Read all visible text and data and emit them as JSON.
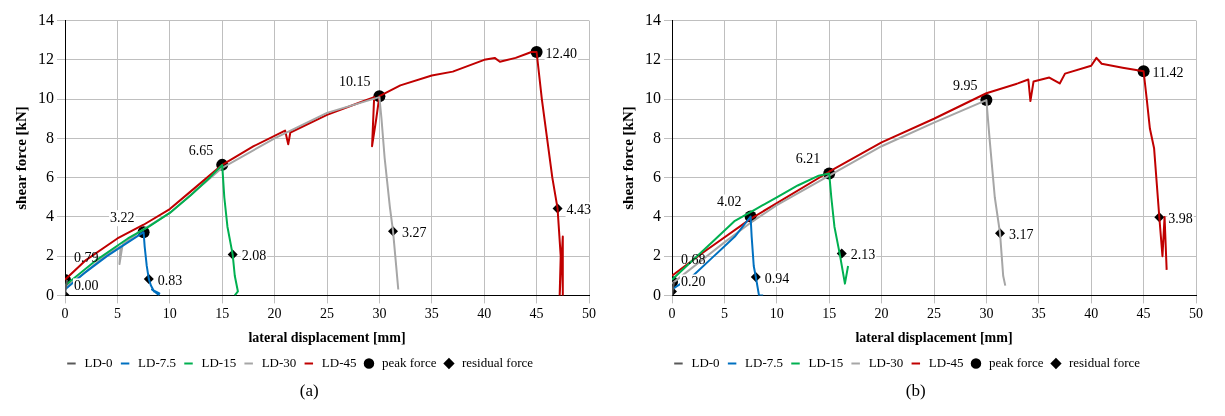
{
  "chart_data": [
    {
      "type": "line",
      "xlabel": "lateral displacement [mm]",
      "ylabel": "shear force [kN]",
      "xlim": [
        0,
        50
      ],
      "xticks": [
        0,
        5,
        10,
        15,
        20,
        25,
        30,
        35,
        40,
        45,
        50
      ],
      "ylim": [
        0,
        14
      ],
      "yticks": [
        0,
        2,
        4,
        6,
        8,
        10,
        12,
        14
      ],
      "grid": true,
      "legend": "bottom",
      "marker": "none",
      "annotations": [
        "(a)"
      ],
      "series": [
        {
          "name": "LD-0",
          "color": "#595959",
          "x": [
            0,
            0.1,
            0.2
          ],
          "values": [
            0,
            0.5,
            0.79
          ]
        },
        {
          "name": "LD-7.5",
          "color": "#0070c0",
          "x": [
            0,
            2,
            4,
            6,
            7.5,
            7.6,
            7.8,
            8.0,
            8.2,
            8.5,
            9,
            8.3,
            9
          ],
          "values": [
            0.3,
            1.2,
            2.0,
            2.7,
            3.22,
            2.5,
            1.5,
            0.83,
            0.5,
            0.2,
            0.1,
            0.3,
            0
          ]
        },
        {
          "name": "LD-15",
          "color": "#00b050",
          "x": [
            0,
            3,
            6,
            8,
            10,
            12,
            14,
            15,
            15.2,
            15.5,
            16,
            16.2,
            16.5,
            16.2
          ],
          "values": [
            0.5,
            1.8,
            2.9,
            3.5,
            4.2,
            5.1,
            6.1,
            6.65,
            5,
            3.5,
            2.08,
            1,
            0.2,
            0
          ]
        },
        {
          "name": "LD-30",
          "color": "#a6a6a6",
          "x": [
            0,
            2,
            4,
            5.3,
            5.2,
            5.5,
            7,
            10,
            15,
            20,
            25,
            30,
            30.2,
            30.5,
            31,
            31.3,
            31.6,
            31.8
          ],
          "values": [
            0.4,
            1.2,
            2.1,
            2.5,
            1.6,
            2.6,
            3.2,
            4.2,
            6.5,
            8.0,
            9.3,
            10.1,
            9,
            7,
            4.5,
            3.27,
            1.5,
            0.3
          ]
        },
        {
          "name": "LD-45",
          "color": "#c00000",
          "x": [
            0,
            2,
            5,
            7.5,
            10,
            12,
            15,
            18,
            21,
            21.3,
            21.5,
            25,
            28,
            29.5,
            29.3,
            29.7,
            30,
            32,
            35,
            37,
            40,
            41,
            41.5,
            43,
            44,
            44.5,
            45,
            45.5,
            46,
            46.5,
            47,
            47.3,
            47.2,
            47.5,
            47.5
          ],
          "values": [
            0.8,
            1.8,
            2.9,
            3.6,
            4.4,
            5.3,
            6.65,
            7.6,
            8.4,
            7.7,
            8.3,
            9.2,
            9.8,
            10.1,
            7.6,
            9,
            10.15,
            10.7,
            11.2,
            11.4,
            12.0,
            12.1,
            11.9,
            12.1,
            12.3,
            12.4,
            12.4,
            10,
            8,
            6,
            4.43,
            2,
            0,
            3,
            0
          ]
        },
        {
          "name": "peak force",
          "type": "scatter",
          "marker": "circle",
          "color": "#000000",
          "x": [
            0,
            7.5,
            15,
            30,
            45
          ],
          "values": [
            0.79,
            3.22,
            6.65,
            10.15,
            12.4
          ],
          "value_labels": [
            "0.79",
            "3.22",
            "6.65",
            "10.15",
            "12.40"
          ]
        },
        {
          "name": "residual force",
          "type": "scatter",
          "marker": "diamond",
          "color": "#000000",
          "x": [
            0,
            8,
            16,
            31.3,
            47
          ],
          "values": [
            0.0,
            0.83,
            2.08,
            3.27,
            4.43
          ],
          "value_labels": [
            "0.00",
            "0.83",
            "2.08",
            "3.27",
            "4.43"
          ]
        }
      ]
    },
    {
      "type": "line",
      "xlabel": "lateral displacement [mm]",
      "ylabel": "shear force [kN]",
      "xlim": [
        0,
        50
      ],
      "xticks": [
        0,
        5,
        10,
        15,
        20,
        25,
        30,
        35,
        40,
        45,
        50
      ],
      "ylim": [
        0,
        14
      ],
      "yticks": [
        0,
        2,
        4,
        6,
        8,
        10,
        12,
        14
      ],
      "grid": true,
      "legend": "bottom",
      "marker": "none",
      "annotations": [
        "(b)"
      ],
      "series": [
        {
          "name": "LD-0",
          "color": "#595959",
          "x": [
            0,
            0.1,
            0.2
          ],
          "values": [
            0,
            0.4,
            0.68
          ]
        },
        {
          "name": "LD-7.5",
          "color": "#0070c0",
          "x": [
            0,
            2,
            4,
            6,
            7.5,
            7.6,
            7.8,
            8,
            8.3,
            8.7
          ],
          "values": [
            0.3,
            1.0,
            2.0,
            3.0,
            4.02,
            3,
            1.5,
            0.94,
            0,
            0
          ]
        },
        {
          "name": "LD-15",
          "color": "#00b050",
          "x": [
            0,
            2,
            4,
            6,
            8,
            10,
            12,
            14,
            15,
            15.2,
            15.5,
            16,
            16.5,
            16.8
          ],
          "values": [
            0.8,
            1.8,
            2.8,
            3.8,
            4.4,
            5.0,
            5.6,
            6.1,
            6.21,
            5,
            3.5,
            2.13,
            0.6,
            1.5
          ]
        },
        {
          "name": "LD-30",
          "color": "#a6a6a6",
          "x": [
            0,
            5,
            7.5,
            10,
            15,
            20,
            25,
            30,
            30.3,
            30.8,
            31.3,
            31.6,
            31.8
          ],
          "values": [
            0.6,
            2.7,
            3.7,
            4.6,
            6.1,
            7.6,
            8.8,
            9.95,
            8,
            5,
            3.17,
            1,
            0.5
          ]
        },
        {
          "name": "LD-45",
          "color": "#c00000",
          "x": [
            0,
            3,
            7.5,
            10,
            15,
            20,
            25,
            30,
            33,
            34,
            34.2,
            34.5,
            36,
            37,
            37.5,
            40,
            40.5,
            41,
            43,
            45,
            45.3,
            45.6,
            46,
            46.5,
            46.8,
            47,
            47.2
          ],
          "values": [
            1.0,
            2.2,
            3.9,
            4.7,
            6.3,
            7.8,
            9.0,
            10.3,
            10.8,
            11,
            9.9,
            10.9,
            11.1,
            10.8,
            11.3,
            11.7,
            12.1,
            11.8,
            11.6,
            11.42,
            10,
            8.5,
            7.5,
            3.98,
            2,
            4,
            1.3
          ]
        },
        {
          "name": "peak force",
          "type": "scatter",
          "marker": "circle",
          "color": "#000000",
          "x": [
            0,
            7.5,
            15,
            30,
            45
          ],
          "values": [
            0.68,
            4.02,
            6.21,
            9.95,
            11.42
          ],
          "value_labels": [
            "0.68",
            "4.02",
            "6.21",
            "9.95",
            "11.42"
          ]
        },
        {
          "name": "residual force",
          "type": "scatter",
          "marker": "diamond",
          "color": "#000000",
          "x": [
            0,
            8,
            16.2,
            31.3,
            46.5
          ],
          "values": [
            0.2,
            0.94,
            2.13,
            3.17,
            3.98
          ],
          "value_labels": [
            "0.20",
            "0.94",
            "2.13",
            "3.17",
            "3.98"
          ]
        }
      ]
    }
  ]
}
